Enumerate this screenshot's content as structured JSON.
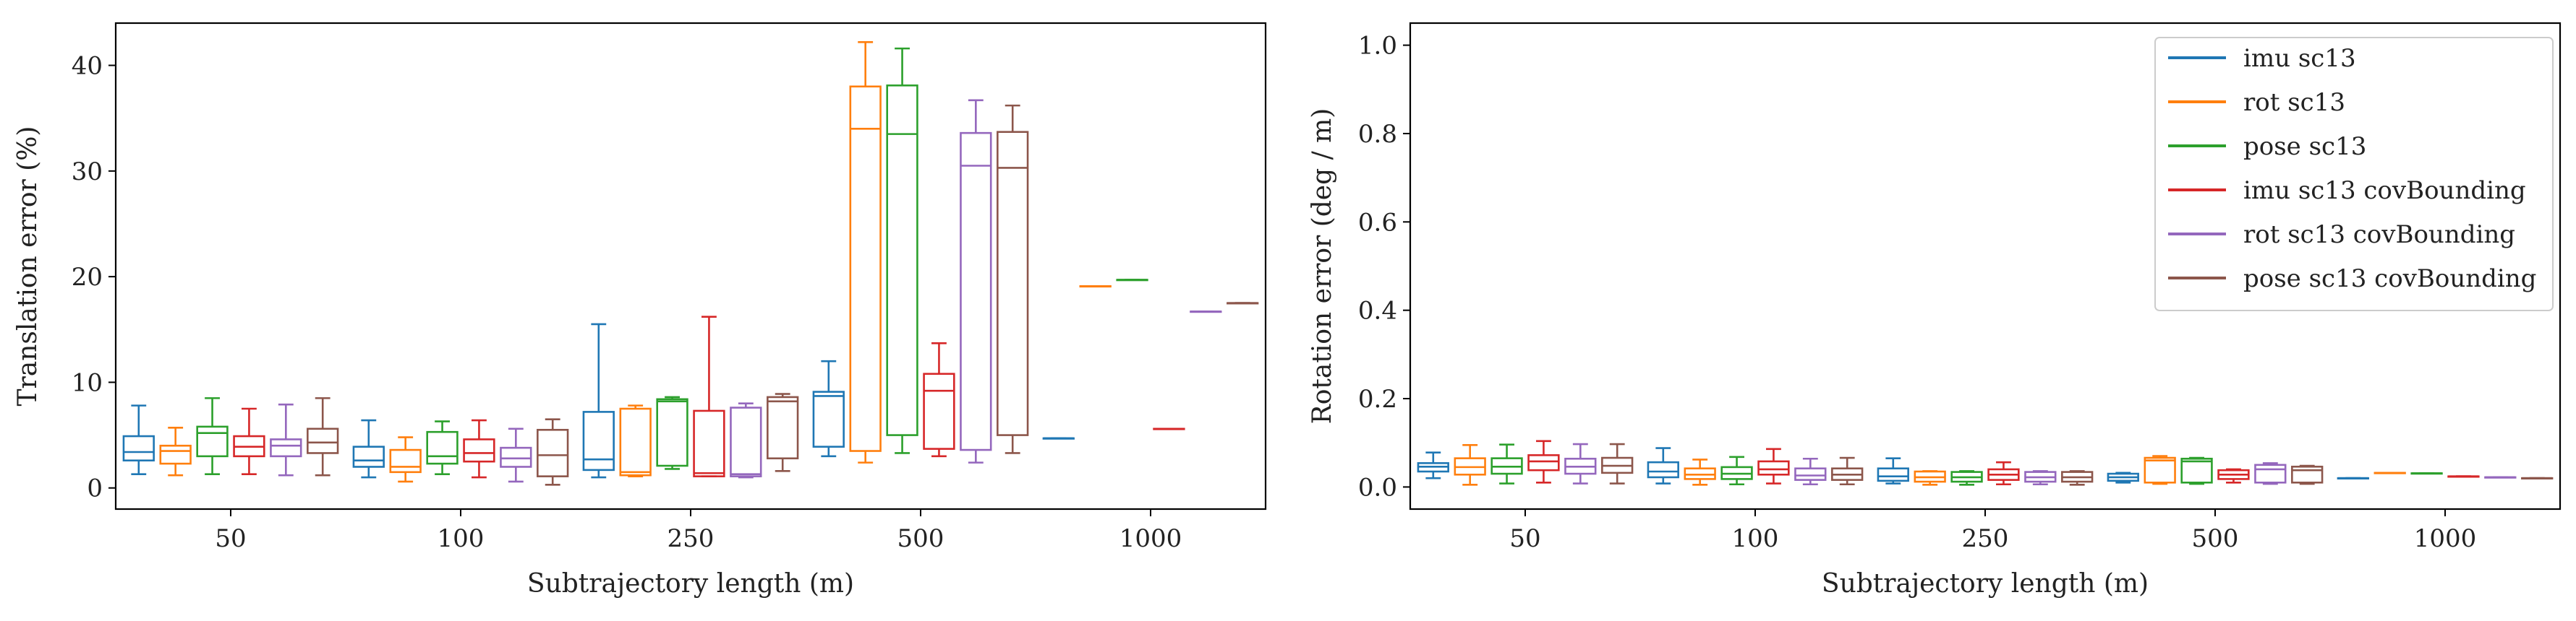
{
  "chart_data": [
    {
      "type": "box",
      "panel": "left",
      "xlabel": "Subtrajectory length (m)",
      "ylabel": "Translation error (%)",
      "ylim": [
        -2,
        44
      ],
      "yticks": [
        0,
        10,
        20,
        30,
        40
      ],
      "categories": [
        "50",
        "100",
        "250",
        "500",
        "1000"
      ],
      "series": [
        {
          "name": "imu sc13",
          "color": "#1f77b4",
          "boxes": [
            {
              "whislo": 1.3,
              "q1": 2.6,
              "med": 3.4,
              "q3": 4.9,
              "whishi": 7.8
            },
            {
              "whislo": 1.0,
              "q1": 2.0,
              "med": 2.6,
              "q3": 3.9,
              "whishi": 6.4
            },
            {
              "whislo": 1.0,
              "q1": 1.7,
              "med": 2.7,
              "q3": 7.2,
              "whishi": 15.5
            },
            {
              "whislo": 3.0,
              "q1": 3.9,
              "med": 8.7,
              "q3": 9.1,
              "whishi": 12.0
            },
            {
              "whislo": 4.7,
              "q1": 4.7,
              "med": 4.7,
              "q3": 4.7,
              "whishi": 4.7
            }
          ]
        },
        {
          "name": "rot sc13",
          "color": "#ff7f0e",
          "boxes": [
            {
              "whislo": 1.2,
              "q1": 2.3,
              "med": 3.5,
              "q3": 4.0,
              "whishi": 5.7
            },
            {
              "whislo": 0.6,
              "q1": 1.5,
              "med": 2.0,
              "q3": 3.6,
              "whishi": 4.8
            },
            {
              "whislo": 1.1,
              "q1": 1.2,
              "med": 1.5,
              "q3": 7.5,
              "whishi": 7.8
            },
            {
              "whislo": 2.4,
              "q1": 3.5,
              "med": 34.0,
              "q3": 38.0,
              "whishi": 42.2
            },
            {
              "whislo": 19.1,
              "q1": 19.1,
              "med": 19.1,
              "q3": 19.1,
              "whishi": 19.1
            }
          ]
        },
        {
          "name": "pose sc13",
          "color": "#2ca02c",
          "boxes": [
            {
              "whislo": 1.3,
              "q1": 3.0,
              "med": 5.2,
              "q3": 5.8,
              "whishi": 8.5
            },
            {
              "whislo": 1.3,
              "q1": 2.3,
              "med": 3.0,
              "q3": 5.3,
              "whishi": 6.3
            },
            {
              "whislo": 1.8,
              "q1": 2.1,
              "med": 8.2,
              "q3": 8.4,
              "whishi": 8.6
            },
            {
              "whislo": 3.3,
              "q1": 5.0,
              "med": 33.5,
              "q3": 38.1,
              "whishi": 41.6
            },
            {
              "whislo": 19.7,
              "q1": 19.7,
              "med": 19.7,
              "q3": 19.7,
              "whishi": 19.7
            }
          ]
        },
        {
          "name": "imu sc13 covBounding",
          "color": "#d62728",
          "boxes": [
            {
              "whislo": 1.3,
              "q1": 3.0,
              "med": 3.9,
              "q3": 4.9,
              "whishi": 7.5
            },
            {
              "whislo": 1.0,
              "q1": 2.5,
              "med": 3.3,
              "q3": 4.6,
              "whishi": 6.4
            },
            {
              "whislo": 1.1,
              "q1": 1.1,
              "med": 1.4,
              "q3": 7.3,
              "whishi": 16.2
            },
            {
              "whislo": 3.0,
              "q1": 3.7,
              "med": 9.2,
              "q3": 10.8,
              "whishi": 13.7
            },
            {
              "whislo": 5.6,
              "q1": 5.6,
              "med": 5.6,
              "q3": 5.6,
              "whishi": 5.6
            }
          ]
        },
        {
          "name": "rot sc13 covBounding",
          "color": "#9467bd",
          "boxes": [
            {
              "whislo": 1.2,
              "q1": 3.0,
              "med": 4.0,
              "q3": 4.6,
              "whishi": 7.9
            },
            {
              "whislo": 0.6,
              "q1": 2.0,
              "med": 2.8,
              "q3": 3.8,
              "whishi": 5.6
            },
            {
              "whislo": 1.0,
              "q1": 1.1,
              "med": 1.3,
              "q3": 7.6,
              "whishi": 8.0
            },
            {
              "whislo": 2.4,
              "q1": 3.6,
              "med": 30.5,
              "q3": 33.6,
              "whishi": 36.7
            },
            {
              "whislo": 16.7,
              "q1": 16.7,
              "med": 16.7,
              "q3": 16.7,
              "whishi": 16.7
            }
          ]
        },
        {
          "name": "pose sc13 covBounding",
          "color": "#8c564b",
          "boxes": [
            {
              "whislo": 1.2,
              "q1": 3.3,
              "med": 4.3,
              "q3": 5.6,
              "whishi": 8.5
            },
            {
              "whislo": 0.3,
              "q1": 1.1,
              "med": 3.1,
              "q3": 5.5,
              "whishi": 6.5
            },
            {
              "whislo": 1.6,
              "q1": 2.8,
              "med": 8.2,
              "q3": 8.6,
              "whishi": 8.9
            },
            {
              "whislo": 3.3,
              "q1": 5.0,
              "med": 30.3,
              "q3": 33.7,
              "whishi": 36.2
            },
            {
              "whislo": 17.5,
              "q1": 17.5,
              "med": 17.5,
              "q3": 17.5,
              "whishi": 17.5
            }
          ]
        }
      ]
    },
    {
      "type": "box",
      "panel": "right",
      "xlabel": "Subtrajectory length (m)",
      "ylabel": "Rotation error (deg / m)",
      "ylim": [
        -0.05,
        1.05
      ],
      "yticks": [
        0.0,
        0.2,
        0.4,
        0.6,
        0.8,
        1.0
      ],
      "categories": [
        "50",
        "100",
        "250",
        "500",
        "1000"
      ],
      "legend_position": "upper right",
      "series": [
        {
          "name": "imu sc13",
          "color": "#1f77b4",
          "boxes": [
            {
              "whislo": 0.02,
              "q1": 0.035,
              "med": 0.046,
              "q3": 0.054,
              "whishi": 0.078
            },
            {
              "whislo": 0.008,
              "q1": 0.022,
              "med": 0.035,
              "q3": 0.056,
              "whishi": 0.088
            },
            {
              "whislo": 0.008,
              "q1": 0.014,
              "med": 0.024,
              "q3": 0.042,
              "whishi": 0.065
            },
            {
              "whislo": 0.01,
              "q1": 0.014,
              "med": 0.022,
              "q3": 0.03,
              "whishi": 0.032
            },
            {
              "whislo": 0.02,
              "q1": 0.02,
              "med": 0.02,
              "q3": 0.02,
              "whishi": 0.02
            }
          ]
        },
        {
          "name": "rot sc13",
          "color": "#ff7f0e",
          "boxes": [
            {
              "whislo": 0.005,
              "q1": 0.028,
              "med": 0.045,
              "q3": 0.065,
              "whishi": 0.095
            },
            {
              "whislo": 0.005,
              "q1": 0.018,
              "med": 0.028,
              "q3": 0.042,
              "whishi": 0.062
            },
            {
              "whislo": 0.005,
              "q1": 0.012,
              "med": 0.022,
              "q3": 0.035,
              "whishi": 0.036
            },
            {
              "whislo": 0.007,
              "q1": 0.01,
              "med": 0.06,
              "q3": 0.066,
              "whishi": 0.07
            },
            {
              "whislo": 0.032,
              "q1": 0.032,
              "med": 0.032,
              "q3": 0.032,
              "whishi": 0.032
            }
          ]
        },
        {
          "name": "pose sc13",
          "color": "#2ca02c",
          "boxes": [
            {
              "whislo": 0.008,
              "q1": 0.03,
              "med": 0.046,
              "q3": 0.065,
              "whishi": 0.096
            },
            {
              "whislo": 0.006,
              "q1": 0.018,
              "med": 0.03,
              "q3": 0.045,
              "whishi": 0.068
            },
            {
              "whislo": 0.005,
              "q1": 0.012,
              "med": 0.022,
              "q3": 0.034,
              "whishi": 0.036
            },
            {
              "whislo": 0.007,
              "q1": 0.01,
              "med": 0.058,
              "q3": 0.064,
              "whishi": 0.066
            },
            {
              "whislo": 0.031,
              "q1": 0.031,
              "med": 0.031,
              "q3": 0.031,
              "whishi": 0.031
            }
          ]
        },
        {
          "name": "imu sc13 covBounding",
          "color": "#d62728",
          "boxes": [
            {
              "whislo": 0.01,
              "q1": 0.038,
              "med": 0.058,
              "q3": 0.072,
              "whishi": 0.104
            },
            {
              "whislo": 0.008,
              "q1": 0.028,
              "med": 0.04,
              "q3": 0.058,
              "whishi": 0.086
            },
            {
              "whislo": 0.006,
              "q1": 0.016,
              "med": 0.028,
              "q3": 0.04,
              "whishi": 0.056
            },
            {
              "whislo": 0.01,
              "q1": 0.018,
              "med": 0.028,
              "q3": 0.038,
              "whishi": 0.04
            },
            {
              "whislo": 0.024,
              "q1": 0.024,
              "med": 0.024,
              "q3": 0.024,
              "whishi": 0.024
            }
          ]
        },
        {
          "name": "rot sc13 covBounding",
          "color": "#9467bd",
          "boxes": [
            {
              "whislo": 0.008,
              "q1": 0.03,
              "med": 0.046,
              "q3": 0.064,
              "whishi": 0.097
            },
            {
              "whislo": 0.006,
              "q1": 0.016,
              "med": 0.026,
              "q3": 0.042,
              "whishi": 0.064
            },
            {
              "whislo": 0.006,
              "q1": 0.012,
              "med": 0.022,
              "q3": 0.034,
              "whishi": 0.036
            },
            {
              "whislo": 0.007,
              "q1": 0.01,
              "med": 0.04,
              "q3": 0.05,
              "whishi": 0.054
            },
            {
              "whislo": 0.022,
              "q1": 0.022,
              "med": 0.022,
              "q3": 0.022,
              "whishi": 0.022
            }
          ]
        },
        {
          "name": "pose sc13 covBounding",
          "color": "#8c564b",
          "boxes": [
            {
              "whislo": 0.008,
              "q1": 0.032,
              "med": 0.048,
              "q3": 0.066,
              "whishi": 0.097
            },
            {
              "whislo": 0.006,
              "q1": 0.016,
              "med": 0.028,
              "q3": 0.042,
              "whishi": 0.066
            },
            {
              "whislo": 0.005,
              "q1": 0.012,
              "med": 0.022,
              "q3": 0.034,
              "whishi": 0.036
            },
            {
              "whislo": 0.007,
              "q1": 0.01,
              "med": 0.038,
              "q3": 0.046,
              "whishi": 0.048
            },
            {
              "whislo": 0.02,
              "q1": 0.02,
              "med": 0.02,
              "q3": 0.02,
              "whishi": 0.02
            }
          ]
        }
      ]
    }
  ]
}
